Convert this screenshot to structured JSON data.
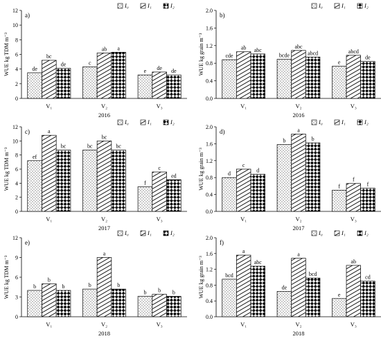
{
  "legend": [
    "I0",
    "I1",
    "I2"
  ],
  "chart_data": [
    {
      "type": "bar",
      "panel_label": "a)",
      "year_label": "2016",
      "ylabel": "WUE kg TDM m⁻³",
      "ylim": [
        0,
        12
      ],
      "yticks": [
        "0",
        "2",
        "4",
        "6",
        "8",
        "10",
        "12"
      ],
      "categories": [
        "V₁",
        "V₂",
        "V₃"
      ],
      "series": [
        {
          "name": "I0",
          "values": [
            3.5,
            4.3,
            3.2
          ],
          "letters": [
            "de",
            "c",
            "e"
          ]
        },
        {
          "name": "I1",
          "values": [
            5.2,
            6.2,
            3.6
          ],
          "letters": [
            "bc",
            "ab",
            "de"
          ]
        },
        {
          "name": "I2",
          "values": [
            4.1,
            6.3,
            3.2
          ],
          "letters": [
            "de",
            "a",
            "de"
          ]
        }
      ]
    },
    {
      "type": "bar",
      "panel_label": "b)",
      "year_label": "2016",
      "ylabel": "WUE kg grain m⁻³",
      "ylim": [
        0,
        2.0
      ],
      "yticks": [
        "0.0",
        "0.4",
        "0.8",
        "1.2",
        "1.6",
        "2.0"
      ],
      "categories": [
        "V₁",
        "V₂",
        "V₃"
      ],
      "series": [
        {
          "name": "I0",
          "values": [
            0.88,
            0.89,
            0.73
          ],
          "letters": [
            "cde",
            "bcde",
            "e"
          ]
        },
        {
          "name": "I1",
          "values": [
            1.06,
            1.09,
            0.98
          ],
          "letters": [
            "ab",
            "abc",
            "abcd"
          ]
        },
        {
          "name": "I2",
          "values": [
            1.01,
            0.94,
            0.84
          ],
          "letters": [
            "abc",
            "abcd",
            "de"
          ]
        }
      ]
    },
    {
      "type": "bar",
      "panel_label": "c)",
      "year_label": "2017",
      "ylabel": "WUE kg TDM m⁻³",
      "ylim": [
        0,
        12
      ],
      "yticks": [
        "0",
        "2",
        "4",
        "6",
        "8",
        "10",
        "12"
      ],
      "categories": [
        "V₁",
        "V₂",
        "V₃"
      ],
      "series": [
        {
          "name": "I0",
          "values": [
            7.2,
            8.7,
            3.5
          ],
          "letters": [
            "ef",
            "bc",
            "f"
          ]
        },
        {
          "name": "I1",
          "values": [
            10.8,
            10.0,
            5.6
          ],
          "letters": [
            "a",
            "bc",
            "c"
          ]
        },
        {
          "name": "I2",
          "values": [
            8.7,
            8.7,
            4.5
          ],
          "letters": [
            "bc",
            "bc",
            "ed"
          ]
        }
      ]
    },
    {
      "type": "bar",
      "panel_label": "d)",
      "year_label": "2017",
      "ylabel": "WUE kg grain m⁻³",
      "ylim": [
        0,
        2.0
      ],
      "yticks": [
        "0.0",
        "0.4",
        "0.8",
        "1.2",
        "1.6",
        "2.0"
      ],
      "categories": [
        "V₁",
        "V₂",
        "V₃"
      ],
      "series": [
        {
          "name": "I0",
          "values": [
            0.8,
            1.58,
            0.5
          ],
          "letters": [
            "d",
            "b",
            "f"
          ]
        },
        {
          "name": "I1",
          "values": [
            1.0,
            1.83,
            0.66
          ],
          "letters": [
            "c",
            "a",
            "f"
          ]
        },
        {
          "name": "I2",
          "values": [
            0.88,
            1.62,
            0.55
          ],
          "letters": [
            "d",
            "b",
            "f"
          ]
        }
      ]
    },
    {
      "type": "bar",
      "panel_label": "e)",
      "year_label": "2018",
      "ylabel": "WUE kg TDM m⁻³",
      "ylim": [
        0,
        12
      ],
      "yticks": [
        "0",
        "3",
        "6",
        "9",
        "12"
      ],
      "categories": [
        "V₁",
        "V₂",
        "V₃"
      ],
      "series": [
        {
          "name": "I0",
          "values": [
            4.0,
            4.2,
            3.1
          ],
          "letters": [
            "b",
            "b",
            "b"
          ]
        },
        {
          "name": "I1",
          "values": [
            5.0,
            9.0,
            3.4
          ],
          "letters": [
            "b",
            "a",
            "b"
          ]
        },
        {
          "name": "I2",
          "values": [
            4.0,
            4.2,
            3.1
          ],
          "letters": [
            "b",
            "b",
            "b"
          ]
        }
      ]
    },
    {
      "type": "bar",
      "panel_label": "f)",
      "year_label": "2018",
      "ylabel": "WUE kg grain m⁻³",
      "ylim": [
        0,
        2.0
      ],
      "yticks": [
        "0.0",
        "0.4",
        "0.8",
        "1.2",
        "1.6",
        "2.0"
      ],
      "categories": [
        "V₁",
        "V₂",
        "V₃"
      ],
      "series": [
        {
          "name": "I0",
          "values": [
            0.95,
            0.64,
            0.46
          ],
          "letters": [
            "bcd",
            "de",
            "e"
          ]
        },
        {
          "name": "I1",
          "values": [
            1.56,
            1.48,
            1.3
          ],
          "letters": [
            "a",
            "a",
            "ab"
          ]
        },
        {
          "name": "I2",
          "values": [
            1.28,
            0.98,
            0.9
          ],
          "letters": [
            "abc",
            "bcd",
            "cd"
          ]
        }
      ]
    }
  ]
}
